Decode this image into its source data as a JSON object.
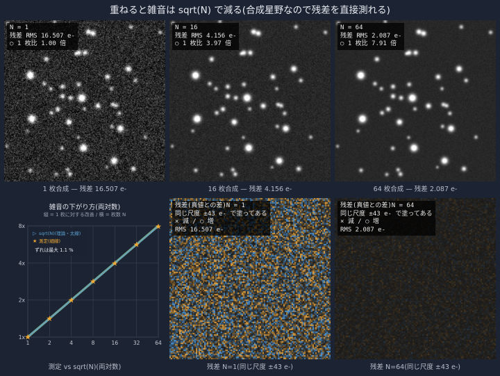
{
  "title": "重ねると雑音は sqrt(N) で減る(合成星野なので残差を直接測れる)",
  "stack_panels": [
    {
      "n_label": "N = 1",
      "rms_label": "残差 RMS 16.507 e-",
      "ratio_label": "○ 1 枚比 1.00 倍",
      "caption": "1 枚合成 — 残差 16.507 e-",
      "noise": 16.507
    },
    {
      "n_label": "N = 16",
      "rms_label": "残差 RMS 4.156 e-",
      "ratio_label": "○ 1 枚比 3.97 倍",
      "caption": "16 枚合成 — 残差 4.156 e-",
      "noise": 4.156
    },
    {
      "n_label": "N = 64",
      "rms_label": "残差 RMS 2.087 e-",
      "ratio_label": "○ 1 枚比 7.91 倍",
      "caption": "64 枚合成 — 残差 2.087 e-",
      "noise": 2.087
    }
  ],
  "residual_panels": [
    {
      "line1": "残差(真値との差)N = 1",
      "line2": "同じ尺度 ±43 e- で塗ってある",
      "line3": "× 減 / ○ 増",
      "line4": "RMS 16.507 e-",
      "caption": "残差 N=1(同じ尺度 ±43 e-)",
      "noise": 16.507
    },
    {
      "line1": "残差(真値との差)N = 64",
      "line2": "同じ尺度 ±43 e- で塗ってある",
      "line3": "× 減 / ○ 増",
      "line4": "RMS 2.087 e-",
      "caption": "残差 N=64(同じ尺度 ±43 e-)",
      "noise": 2.087
    }
  ],
  "colors": {
    "background": "#1c2333",
    "theory_line": "#5aa0d0",
    "measured": "#f0a830",
    "residual_positive": "#e0a040",
    "residual_negative": "#4a90d0"
  },
  "chart_data": {
    "type": "line",
    "title": "雑音の下がり方(両対数)",
    "subtitle": "縦 = 1 枚に対する改善 / 横 = 枚数 N",
    "caption": "測定 vs sqrt(N)(両対数)",
    "x_scale": "log",
    "y_scale": "log",
    "x_ticks": [
      "1",
      "2",
      "4",
      "8",
      "16",
      "32",
      "64"
    ],
    "y_ticks": [
      "1x",
      "2x",
      "4x",
      "8x"
    ],
    "xlim": [
      1,
      64
    ],
    "ylim": [
      1,
      8
    ],
    "grid": true,
    "legend_position": "top-left",
    "series": [
      {
        "name": "sqrt(N)(理論・太線)",
        "x": [
          1,
          2,
          4,
          8,
          16,
          32,
          64
        ],
        "values": [
          1,
          1.414,
          2,
          2.828,
          4,
          5.657,
          8
        ]
      },
      {
        "name": "測定(細線)",
        "x": [
          1,
          2,
          4,
          8,
          16,
          32,
          64
        ],
        "values": [
          1,
          1.41,
          1.99,
          2.82,
          3.97,
          5.62,
          7.91
        ]
      }
    ],
    "annotation": "ずれは最大 1.1 %"
  }
}
